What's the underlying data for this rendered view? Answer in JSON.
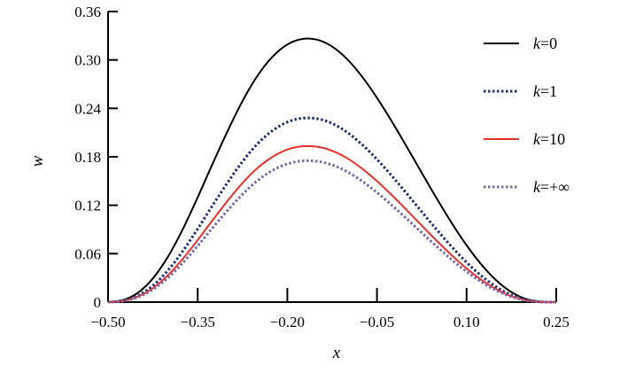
{
  "chart_data": {
    "type": "line",
    "title": "",
    "xlabel": "x",
    "ylabel": "w",
    "xlim": [
      -0.5,
      0.25
    ],
    "ylim": [
      0,
      0.36
    ],
    "xticks": [
      -0.5,
      -0.35,
      -0.2,
      -0.05,
      0.1,
      0.25
    ],
    "xtick_labels": [
      "−0.50",
      "−0.35",
      "−0.20",
      "−0.05",
      "0.10",
      "0.25"
    ],
    "yticks": [
      0,
      0.06,
      0.12,
      0.18,
      0.24,
      0.3,
      0.36
    ],
    "ytick_labels": [
      "0",
      "0.06",
      "0.12",
      "0.18",
      "0.24",
      "0.30",
      "0.36"
    ],
    "grid": false,
    "legend_position": "top-right",
    "x": [
      -0.5,
      -0.475,
      -0.45,
      -0.425,
      -0.4,
      -0.375,
      -0.35,
      -0.325,
      -0.3,
      -0.275,
      -0.25,
      -0.225,
      -0.2,
      -0.175,
      -0.15,
      -0.125,
      -0.1,
      -0.075,
      -0.05,
      -0.025,
      0,
      0.025,
      0.05,
      0.075,
      0.1,
      0.125,
      0.15,
      0.175,
      0.2,
      0.225,
      0.25
    ],
    "series": [
      {
        "name": "k=0",
        "label_italic": "k",
        "label_rest": "=0",
        "color": "#000000",
        "dash": "solid",
        "values": [
          0,
          0.0025,
          0.0116,
          0.0293,
          0.0559,
          0.0902,
          0.1298,
          0.1714,
          0.2118,
          0.2491,
          0.2804,
          0.3038,
          0.3191,
          0.326,
          0.3251,
          0.3166,
          0.3011,
          0.2794,
          0.2531,
          0.2236,
          0.1922,
          0.1601,
          0.1284,
          0.0981,
          0.0704,
          0.0463,
          0.0267,
          0.0124,
          0.0037,
          0.0004,
          0
        ]
      },
      {
        "name": "k=1",
        "label_italic": "k",
        "label_rest": "=1",
        "color": "#1f2f6e",
        "dash": "dotted",
        "values": [
          0,
          0.0017,
          0.0081,
          0.0205,
          0.0391,
          0.0631,
          0.0908,
          0.1198,
          0.148,
          0.1741,
          0.196,
          0.2123,
          0.223,
          0.2278,
          0.2272,
          0.2213,
          0.2104,
          0.1952,
          0.1769,
          0.1563,
          0.1343,
          0.1119,
          0.0897,
          0.0686,
          0.0492,
          0.0324,
          0.0187,
          0.0087,
          0.0026,
          0.0003,
          0
        ]
      },
      {
        "name": "k=10",
        "label_italic": "k",
        "label_rest": "=10",
        "color": "#e8302c",
        "dash": "solid",
        "values": [
          0,
          0.0014,
          0.0069,
          0.0174,
          0.0331,
          0.0535,
          0.0769,
          0.1015,
          0.1254,
          0.1475,
          0.1661,
          0.1799,
          0.189,
          0.193,
          0.1925,
          0.1875,
          0.1783,
          0.1654,
          0.1499,
          0.1324,
          0.1138,
          0.0948,
          0.076,
          0.0581,
          0.0417,
          0.0274,
          0.0158,
          0.0073,
          0.0022,
          0.0002,
          0
        ]
      },
      {
        "name": "k=+∞",
        "label_italic": "k",
        "label_rest": "=+∞",
        "color": "#7b67a8",
        "dash": "dotted",
        "values": [
          0,
          0.0013,
          0.0062,
          0.0157,
          0.03,
          0.0484,
          0.0697,
          0.092,
          0.1136,
          0.1336,
          0.1505,
          0.163,
          0.1712,
          0.1749,
          0.1744,
          0.1699,
          0.1616,
          0.1499,
          0.1358,
          0.12,
          0.1031,
          0.0859,
          0.0689,
          0.0526,
          0.0378,
          0.0248,
          0.0143,
          0.0066,
          0.002,
          0.0002,
          0
        ]
      }
    ]
  }
}
